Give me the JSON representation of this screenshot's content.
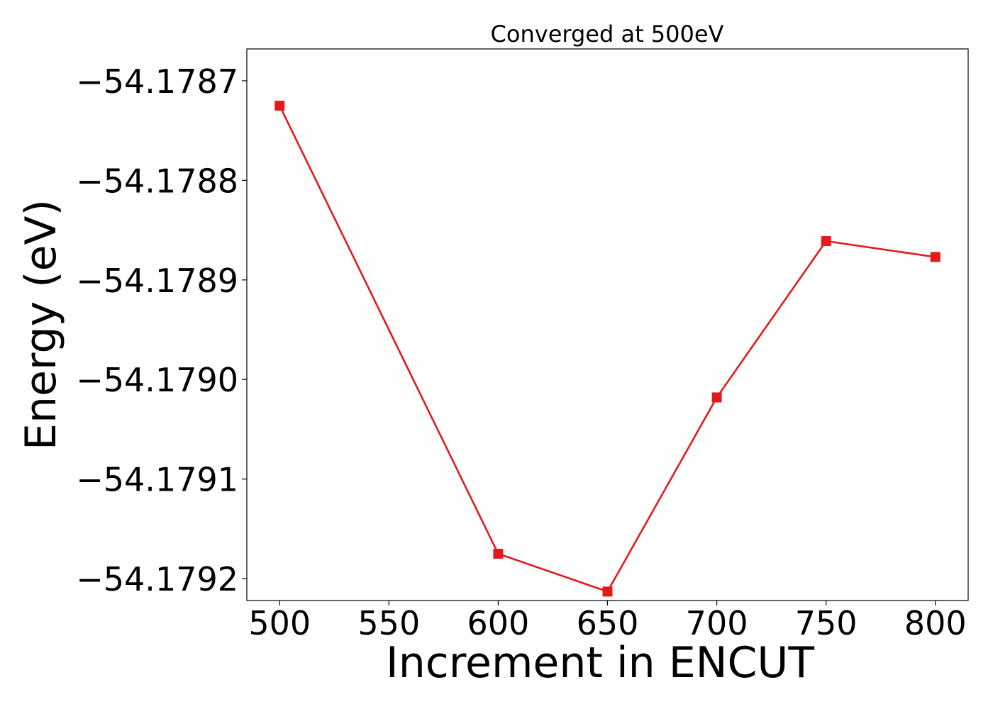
{
  "chart_data": {
    "type": "line",
    "title": "Converged at 500eV",
    "xlabel": "Increment in ENCUT",
    "ylabel": "Energy (eV)",
    "x": [
      500,
      600,
      650,
      700,
      750,
      800
    ],
    "series": [
      {
        "values": [
          -54.178725,
          -54.179175,
          -54.179213,
          -54.179018,
          -54.178861,
          -54.178877
        ],
        "color": "#e31a1c",
        "marker": "square"
      }
    ],
    "xlim": [
      485,
      815
    ],
    "ylim": [
      -54.179222,
      -54.178668
    ],
    "xticks": [
      500,
      550,
      600,
      650,
      700,
      750,
      800
    ],
    "xtick_labels": [
      "500",
      "550",
      "600",
      "650",
      "700",
      "750",
      "800"
    ],
    "yticks": [
      -54.1787,
      -54.1788,
      -54.1789,
      -54.179,
      -54.1791,
      -54.1792
    ],
    "ytick_labels": [
      "−54.1787",
      "−54.1788",
      "−54.1789",
      "−54.1790",
      "−54.1791",
      "−54.1792"
    ],
    "grid": false,
    "legend": false
  }
}
